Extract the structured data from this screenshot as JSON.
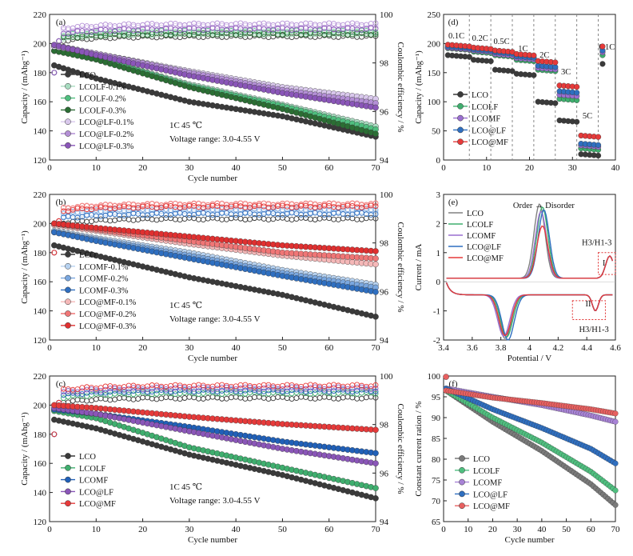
{
  "chart_data": [
    {
      "panel": "a",
      "type": "scatter",
      "xlabel": "Cycle number",
      "ylabel": "Capacity / (mAhg⁻¹)",
      "y2label": "Coulombic efficiency / %",
      "xlim": [
        0,
        70
      ],
      "ylim": [
        120,
        220
      ],
      "y2lim": [
        94,
        100
      ],
      "xticks": [
        0,
        10,
        20,
        30,
        40,
        50,
        60,
        70
      ],
      "yticks": [
        120,
        140,
        160,
        180,
        200,
        220
      ],
      "y2ticks": [
        94,
        96,
        98,
        100
      ],
      "note_rate": "1C",
      "note_temp": "45 ℃",
      "note_voltage": "Voltage range: 3.0-4.55 V",
      "series": [
        {
          "name": "LCO",
          "color": "#3a3a3a",
          "capacity": [
            [
              1,
              185
            ],
            [
              10,
              176
            ],
            [
              30,
              160
            ],
            [
              50,
              150
            ],
            [
              70,
              136
            ]
          ],
          "ce_end": 99.1
        },
        {
          "name": "LCOLF-0.1%",
          "color": "#a8dcc0",
          "capacity": [
            [
              1,
              195
            ],
            [
              10,
              190
            ],
            [
              30,
              172
            ],
            [
              50,
              158
            ],
            [
              70,
              143
            ]
          ],
          "ce_end": 99.2
        },
        {
          "name": "LCOLF-0.2%",
          "color": "#4fbf7f",
          "capacity": [
            [
              1,
              195
            ],
            [
              10,
              190
            ],
            [
              30,
              171
            ],
            [
              50,
              157
            ],
            [
              70,
              141
            ]
          ],
          "ce_end": 99.3
        },
        {
          "name": "LCOLF-0.3%",
          "color": "#2b6e34",
          "capacity": [
            [
              1,
              195
            ],
            [
              10,
              189
            ],
            [
              30,
              170
            ],
            [
              50,
              155
            ],
            [
              70,
              138
            ]
          ],
          "ce_end": 99.2
        },
        {
          "name": "LCO@LF-0.1%",
          "color": "#d9c8ec",
          "capacity": [
            [
              1,
              198
            ],
            [
              10,
              193
            ],
            [
              30,
              181
            ],
            [
              50,
              170
            ],
            [
              70,
              162
            ]
          ],
          "ce_end": 99.5
        },
        {
          "name": "LCO@LF-0.2%",
          "color": "#b48fd6",
          "capacity": [
            [
              1,
              199
            ],
            [
              10,
              193
            ],
            [
              30,
              180
            ],
            [
              50,
              168
            ],
            [
              70,
              159
            ]
          ],
          "ce_end": 99.6
        },
        {
          "name": "LCO@LF-0.3%",
          "color": "#8a56b8",
          "capacity": [
            [
              1,
              199
            ],
            [
              10,
              192
            ],
            [
              30,
              178
            ],
            [
              50,
              166
            ],
            [
              70,
              156
            ]
          ],
          "ce_end": 99.4
        }
      ]
    },
    {
      "panel": "b",
      "type": "scatter",
      "xlabel": "Cycle number",
      "ylabel": "Capacity / (mAhg⁻¹)",
      "y2label": "Coulombic efficiency / %",
      "xlim": [
        0,
        70
      ],
      "ylim": [
        120,
        220
      ],
      "y2lim": [
        94,
        100
      ],
      "xticks": [
        0,
        10,
        20,
        30,
        40,
        50,
        60,
        70
      ],
      "yticks": [
        120,
        140,
        160,
        180,
        200,
        220
      ],
      "y2ticks": [
        94,
        96,
        98,
        100
      ],
      "note_rate": "1C",
      "note_temp": "45 ℃",
      "note_voltage": "Voltage range: 3.0-4.55 V",
      "series": [
        {
          "name": "LCO",
          "color": "#3a3a3a",
          "capacity": [
            [
              1,
              185
            ],
            [
              10,
              178
            ],
            [
              30,
              163
            ],
            [
              50,
              151
            ],
            [
              70,
              136
            ]
          ],
          "ce_end": 99.0
        },
        {
          "name": "LCOMF-0.1%",
          "color": "#b7d2f0",
          "capacity": [
            [
              1,
              195
            ],
            [
              10,
              190
            ],
            [
              30,
              180
            ],
            [
              50,
              168
            ],
            [
              70,
              158
            ]
          ],
          "ce_end": 99.3
        },
        {
          "name": "LCOMF-0.2%",
          "color": "#7aa7df",
          "capacity": [
            [
              1,
              194
            ],
            [
              10,
              189
            ],
            [
              30,
              178
            ],
            [
              50,
              166
            ],
            [
              70,
              156
            ]
          ],
          "ce_end": 99.4
        },
        {
          "name": "LCOMF-0.3%",
          "color": "#2f6fc0",
          "capacity": [
            [
              1,
              194
            ],
            [
              10,
              188
            ],
            [
              30,
              176
            ],
            [
              50,
              164
            ],
            [
              70,
              153
            ]
          ],
          "ce_end": 99.2
        },
        {
          "name": "LCO@MF-0.1%",
          "color": "#f5b8b8",
          "capacity": [
            [
              1,
              199
            ],
            [
              10,
              195
            ],
            [
              30,
              186
            ],
            [
              50,
              178
            ],
            [
              70,
              172
            ]
          ],
          "ce_end": 99.6
        },
        {
          "name": "LCO@MF-0.2%",
          "color": "#f07676",
          "capacity": [
            [
              1,
              200
            ],
            [
              10,
              196
            ],
            [
              30,
              188
            ],
            [
              50,
              180
            ],
            [
              70,
              176
            ]
          ],
          "ce_end": 99.6
        },
        {
          "name": "LCO@MF-0.3%",
          "color": "#e03030",
          "capacity": [
            [
              1,
              200
            ],
            [
              10,
              197
            ],
            [
              30,
              191
            ],
            [
              50,
              185
            ],
            [
              70,
              181
            ]
          ],
          "ce_end": 99.5
        }
      ]
    },
    {
      "panel": "c",
      "type": "scatter",
      "xlabel": "Cycle number",
      "ylabel": "Capacity / (mAhg⁻¹)",
      "y2label": "Coulombic efficiency / %",
      "xlim": [
        0,
        70
      ],
      "ylim": [
        120,
        220
      ],
      "y2lim": [
        94,
        100
      ],
      "xticks": [
        0,
        10,
        20,
        30,
        40,
        50,
        60,
        70
      ],
      "yticks": [
        120,
        140,
        160,
        180,
        200,
        220
      ],
      "y2ticks": [
        94,
        96,
        98,
        100
      ],
      "note_rate": "1C",
      "note_temp": "45 ℃",
      "note_voltage": "Voltage range: 3.0-4.55 V",
      "series": [
        {
          "name": "LCO",
          "color": "#3a3a3a",
          "capacity": [
            [
              1,
              190
            ],
            [
              10,
              184
            ],
            [
              30,
              166
            ],
            [
              50,
              152
            ],
            [
              70,
              136
            ]
          ],
          "ce_end": 99.1
        },
        {
          "name": "LCOLF",
          "color": "#3fae6e",
          "capacity": [
            [
              1,
              196
            ],
            [
              10,
              191
            ],
            [
              30,
              171
            ],
            [
              50,
              157
            ],
            [
              70,
              143
            ]
          ],
          "ce_end": 99.3
        },
        {
          "name": "LCOMF",
          "color": "#2060b8",
          "capacity": [
            [
              1,
              197
            ],
            [
              10,
              194
            ],
            [
              30,
              185
            ],
            [
              50,
              175
            ],
            [
              70,
              167
            ]
          ],
          "ce_end": 99.4
        },
        {
          "name": "LCO@LF",
          "color": "#8a56b8",
          "capacity": [
            [
              1,
              198
            ],
            [
              10,
              194
            ],
            [
              30,
              182
            ],
            [
              50,
              170
            ],
            [
              70,
              160
            ]
          ],
          "ce_end": 99.5
        },
        {
          "name": "LCO@MF",
          "color": "#e63a3a",
          "capacity": [
            [
              1,
              200
            ],
            [
              10,
              198
            ],
            [
              30,
              192
            ],
            [
              50,
              187
            ],
            [
              70,
              183
            ]
          ],
          "ce_end": 99.6
        }
      ]
    },
    {
      "panel": "d",
      "type": "scatter",
      "xlabel": "",
      "ylabel": "Capacity / (mAhg⁻¹)",
      "xlim": [
        0,
        40
      ],
      "ylim": [
        0,
        250
      ],
      "xticks": [
        0,
        10,
        20,
        30,
        40
      ],
      "yticks": [
        0,
        50,
        100,
        150,
        200,
        250
      ],
      "rate_labels": [
        "0.1C",
        "0.2C",
        "0.5C",
        "1C",
        "2C",
        "3C",
        "5C",
        "0.1C"
      ],
      "series": [
        {
          "name": "LCO",
          "color": "#3a3a3a",
          "capacity_per_step": [
            180,
            172,
            155,
            148,
            100,
            68,
            10,
            165
          ]
        },
        {
          "name": "LCOLF",
          "color": "#3fae6e",
          "capacity_per_step": [
            192,
            186,
            180,
            172,
            155,
            105,
            20,
            180
          ]
        },
        {
          "name": "LCOMF",
          "color": "#9a6fd0",
          "capacity_per_step": [
            193,
            188,
            182,
            175,
            158,
            112,
            25,
            185
          ]
        },
        {
          "name": "LCO@LF",
          "color": "#2f6fc0",
          "capacity_per_step": [
            195,
            190,
            185,
            178,
            162,
            118,
            28,
            188
          ]
        },
        {
          "name": "LCO@MF",
          "color": "#e63a3a",
          "capacity_per_step": [
            198,
            193,
            188,
            182,
            170,
            128,
            42,
            195
          ]
        }
      ]
    },
    {
      "panel": "e",
      "type": "line",
      "xlabel": "Potential / V",
      "ylabel": "Current / mA",
      "xlim": [
        3.4,
        4.6
      ],
      "ylim": [
        -2,
        3
      ],
      "xticks": [
        3.4,
        3.6,
        3.8,
        4.0,
        4.2,
        4.4,
        4.6
      ],
      "yticks": [
        -2,
        -1,
        0,
        1,
        2,
        3
      ],
      "annotation_order": "Order → Disorder",
      "annotation_h3": "H3/H1-3",
      "annotation_i": "I",
      "annotation_ii": "II",
      "series": [
        {
          "name": "LCO",
          "color": "#808080",
          "ox_peak": [
            4.07,
            2.55
          ],
          "red_peak": [
            3.83,
            -1.5
          ]
        },
        {
          "name": "LCOLF",
          "color": "#3fae6e",
          "ox_peak": [
            4.09,
            2.45
          ],
          "red_peak": [
            3.84,
            -1.45
          ]
        },
        {
          "name": "LCOMF",
          "color": "#9a6fd0",
          "ox_peak": [
            4.08,
            2.3
          ],
          "red_peak": [
            3.82,
            -1.42
          ]
        },
        {
          "name": "LCO@LF",
          "color": "#2f6fc0",
          "ox_peak": [
            4.1,
            2.35
          ],
          "red_peak": [
            3.85,
            -1.55
          ]
        },
        {
          "name": "LCO@MF",
          "color": "#e63a3a",
          "ox_peak": [
            4.09,
            1.8
          ],
          "red_peak": [
            3.83,
            -1.4
          ]
        }
      ]
    },
    {
      "panel": "f",
      "type": "scatter",
      "xlabel": "Cycle number",
      "ylabel": "Constant current ration / %",
      "xlim": [
        0,
        70
      ],
      "ylim": [
        65,
        100
      ],
      "xticks": [
        0,
        10,
        20,
        30,
        40,
        50,
        60,
        70
      ],
      "yticks": [
        65,
        70,
        75,
        80,
        85,
        90,
        95,
        100
      ],
      "series": [
        {
          "name": "LCO",
          "color": "#7a7a7a",
          "values": [
            [
              1,
              96.5
            ],
            [
              20,
              89
            ],
            [
              40,
              82
            ],
            [
              60,
              74
            ],
            [
              70,
              69
            ]
          ]
        },
        {
          "name": "LCOLF",
          "color": "#4fbf7f",
          "values": [
            [
              1,
              96.5
            ],
            [
              20,
              90
            ],
            [
              40,
              84
            ],
            [
              60,
              77
            ],
            [
              70,
              72.5
            ]
          ]
        },
        {
          "name": "LCOMF",
          "color": "#a883d6",
          "values": [
            [
              1,
              97
            ],
            [
              20,
              95
            ],
            [
              40,
              93
            ],
            [
              60,
              90.5
            ],
            [
              70,
              89
            ]
          ]
        },
        {
          "name": "LCO@LF",
          "color": "#2f6fc0",
          "values": [
            [
              1,
              97
            ],
            [
              20,
              92
            ],
            [
              40,
              87.5
            ],
            [
              60,
              82.5
            ],
            [
              70,
              79
            ]
          ]
        },
        {
          "name": "LCO@MF",
          "color": "#e86060",
          "values": [
            [
              1,
              96.5
            ],
            [
              20,
              94.8
            ],
            [
              40,
              93.5
            ],
            [
              60,
              92
            ],
            [
              70,
              91
            ]
          ]
        }
      ]
    }
  ]
}
